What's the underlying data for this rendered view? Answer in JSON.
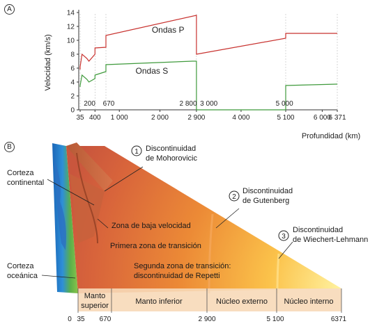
{
  "panel_a": {
    "letter": "A",
    "ylabel": "Velocidad (km/s)",
    "xlabel": "Profundidad (km)",
    "y_ticks": [
      "0",
      "2",
      "4",
      "6",
      "8",
      "10",
      "12",
      "14"
    ],
    "x_ticks": [
      "35",
      "400",
      "1 000",
      "2 000",
      "2 900",
      "4 000",
      "5 100",
      "6 000",
      "6 371"
    ],
    "inline_labels": [
      "200",
      "670",
      "2 800",
      "3 000",
      "5 000"
    ],
    "series_p_label": "Ondas P",
    "series_s_label": "Ondas S",
    "color_p": "#c8322f",
    "color_s": "#3f9a3c"
  },
  "chart_data": {
    "type": "line",
    "xlabel": "Profundidad (km)",
    "ylabel": "Velocidad (km/s)",
    "xlim": [
      0,
      6371
    ],
    "ylim": [
      0,
      14
    ],
    "series": [
      {
        "name": "Ondas P",
        "points": [
          [
            35,
            5.8
          ],
          [
            35,
            6.2
          ],
          [
            80,
            8.0
          ],
          [
            200,
            7.4
          ],
          [
            250,
            7.0
          ],
          [
            400,
            8.0
          ],
          [
            400,
            8.9
          ],
          [
            670,
            9.0
          ],
          [
            670,
            10.7
          ],
          [
            2900,
            13.6
          ],
          [
            2900,
            8.0
          ],
          [
            5100,
            10.3
          ],
          [
            5100,
            11.0
          ],
          [
            6000,
            11.0
          ],
          [
            6371,
            11.0
          ]
        ]
      },
      {
        "name": "Ondas S",
        "points": [
          [
            35,
            3.3
          ],
          [
            35,
            3.5
          ],
          [
            80,
            5.0
          ],
          [
            200,
            4.4
          ],
          [
            250,
            4.0
          ],
          [
            400,
            4.5
          ],
          [
            400,
            5.0
          ],
          [
            670,
            5.5
          ],
          [
            670,
            6.5
          ],
          [
            2800,
            7.0
          ],
          [
            2900,
            7.0
          ],
          [
            2900,
            0
          ],
          [
            5100,
            0
          ],
          [
            5100,
            3.5
          ],
          [
            6371,
            3.7
          ]
        ]
      }
    ]
  },
  "panel_b": {
    "letter": "B",
    "corteza_continental": [
      "Corteza",
      "continental"
    ],
    "corteza_oceanica": [
      "Corteza",
      "oceánica"
    ],
    "disc1": [
      "Discontinuidad",
      "de Mohorovicic"
    ],
    "disc2": [
      "Discontinuidad",
      "de Gutenberg"
    ],
    "disc3": [
      "Discontinuidad",
      "de Wiechert-Lehmann"
    ],
    "zona_baja": "Zona de baja velocidad",
    "primera_zona": "Primera zona de transición",
    "segunda_zona": [
      "Segunda zona de transición:",
      "discontinuidad de Repetti"
    ],
    "bands": [
      "Manto",
      "superior",
      "Manto inferior",
      "Núcleo externo",
      "Núcleo interno"
    ],
    "depth_ticks": [
      "0",
      "35",
      "670",
      "2 900",
      "5 100",
      "6371"
    ],
    "num1": "1",
    "num2": "2",
    "num3": "3"
  }
}
